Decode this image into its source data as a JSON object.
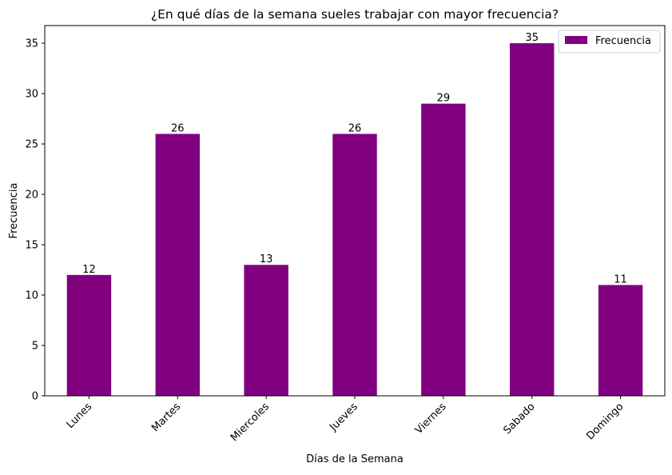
{
  "chart_data": {
    "type": "bar",
    "title": "¿En qué días de la semana sueles trabajar con mayor frecuencia?",
    "xlabel": "Días de la Semana",
    "ylabel": "Frecuencia",
    "categories": [
      "Lunes",
      "Martes",
      "Miercoles",
      "Jueves",
      "Viernes",
      "Sabado",
      "Domingo"
    ],
    "series": [
      {
        "name": "Frecuencia",
        "values": [
          12,
          26,
          13,
          26,
          29,
          35,
          11
        ],
        "color": "#800080"
      }
    ],
    "ylim": [
      0,
      36.75
    ],
    "yticks": [
      0,
      5,
      10,
      15,
      20,
      25,
      30,
      35
    ],
    "grid": false,
    "legend_position": "upper-right",
    "data_labels": true
  }
}
